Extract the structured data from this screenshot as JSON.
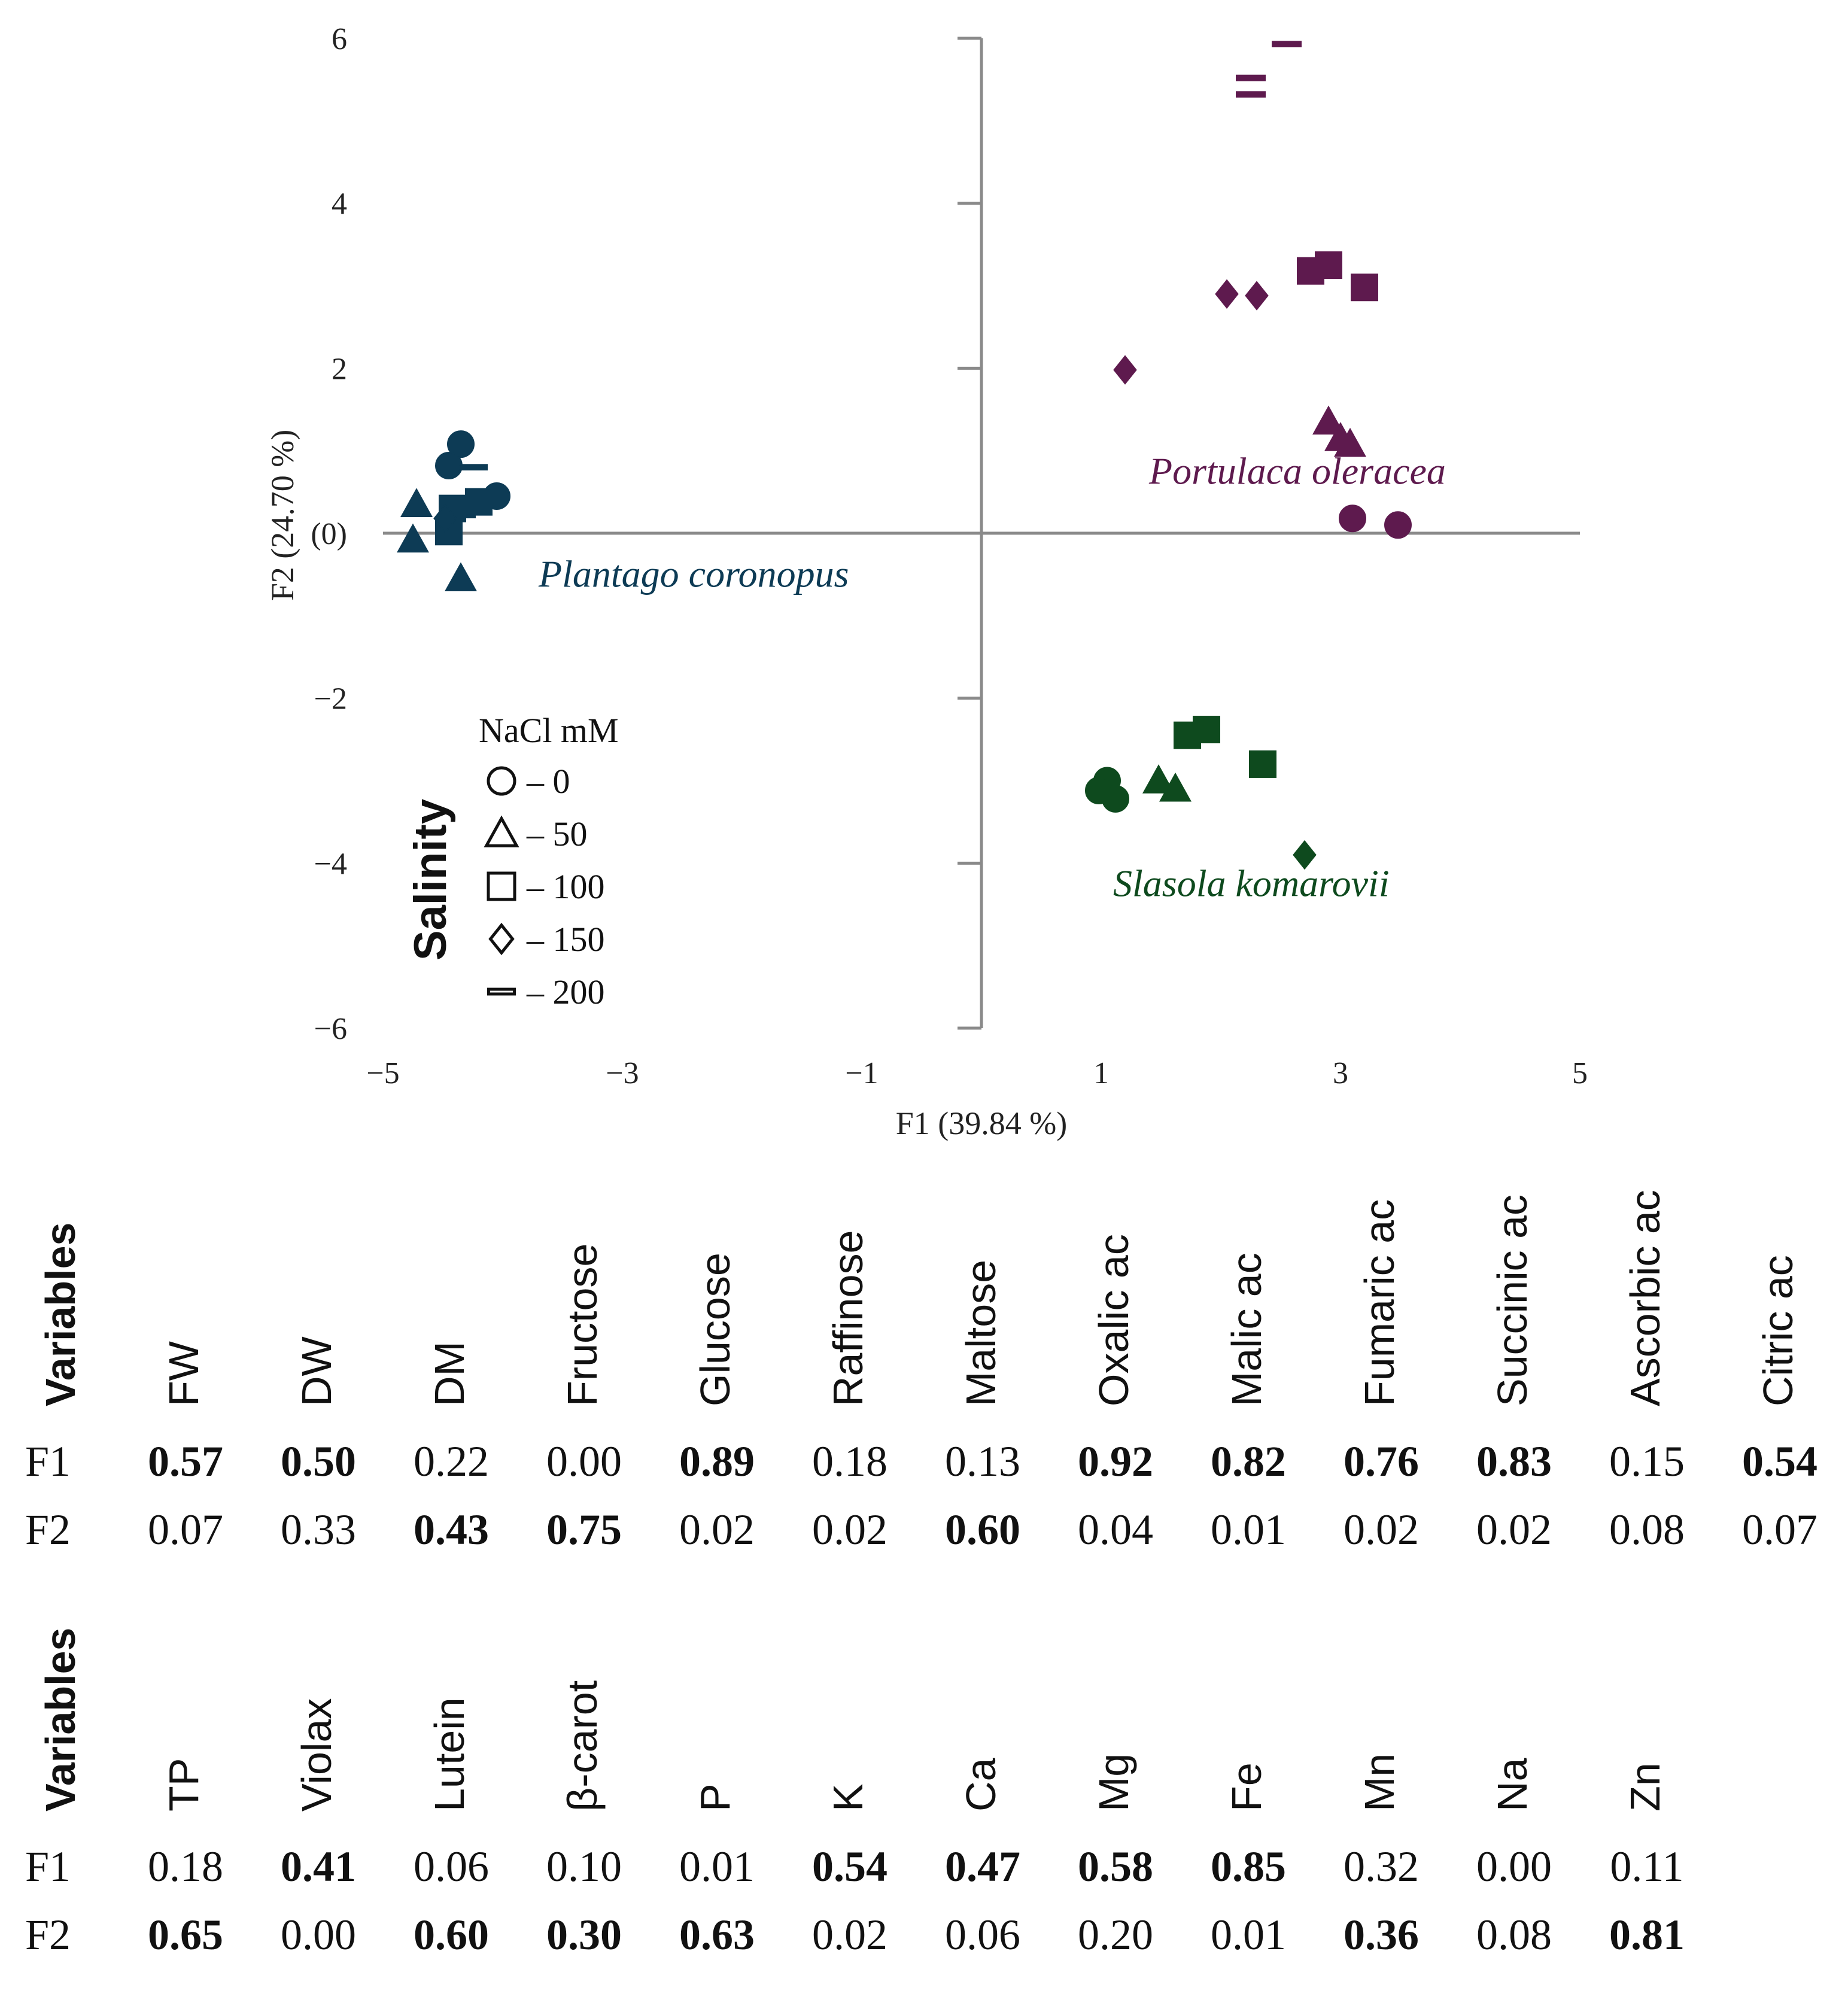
{
  "chart_data": {
    "type": "scatter",
    "title": "",
    "xlabel": "F1 (39.84 %)",
    "ylabel": "F2 (24.70 %)",
    "xlim": [
      -5,
      5
    ],
    "ylim": [
      -6,
      6
    ],
    "x_ticks": [
      -5,
      -3,
      -1,
      1,
      3,
      5
    ],
    "x_tick_labels": [
      "−5",
      "−3",
      "−1",
      "1",
      "3",
      "5"
    ],
    "y_ticks": [
      6,
      4,
      2,
      0,
      -2,
      -4,
      -6
    ],
    "y_tick_labels": [
      "6",
      "4",
      "2",
      "(0)",
      "−2",
      "−4",
      "−6"
    ],
    "legend": {
      "side_label": "Salinity",
      "title": "NaCl mM",
      "entries": [
        {
          "marker": "circle",
          "label": "– 0"
        },
        {
          "marker": "triangle",
          "label": "– 50"
        },
        {
          "marker": "square",
          "label": "– 100"
        },
        {
          "marker": "diamond",
          "label": "– 150"
        },
        {
          "marker": "dash",
          "label": "– 200"
        }
      ]
    },
    "series": [
      {
        "name": "Portulaca oleracea",
        "color": "#5e1a4e",
        "label_pos": {
          "x": 1.4,
          "y": 0.6
        },
        "points": [
          {
            "x": 2.55,
            "y": 5.93,
            "marker": "dash"
          },
          {
            "x": 2.25,
            "y": 5.52,
            "marker": "dash"
          },
          {
            "x": 2.25,
            "y": 5.32,
            "marker": "dash"
          },
          {
            "x": 2.75,
            "y": 3.18,
            "marker": "square"
          },
          {
            "x": 2.9,
            "y": 3.25,
            "marker": "square"
          },
          {
            "x": 3.2,
            "y": 2.98,
            "marker": "square"
          },
          {
            "x": 2.05,
            "y": 2.9,
            "marker": "diamond"
          },
          {
            "x": 2.3,
            "y": 2.88,
            "marker": "diamond"
          },
          {
            "x": 1.2,
            "y": 1.98,
            "marker": "diamond"
          },
          {
            "x": 2.9,
            "y": 1.35,
            "marker": "triangle"
          },
          {
            "x": 3.0,
            "y": 1.15,
            "marker": "triangle"
          },
          {
            "x": 3.08,
            "y": 1.08,
            "marker": "triangle"
          },
          {
            "x": 3.1,
            "y": 0.18,
            "marker": "circle"
          },
          {
            "x": 3.48,
            "y": 0.1,
            "marker": "circle"
          }
        ]
      },
      {
        "name": "Plantago coronopus",
        "color": "#0d3b55",
        "label_pos": {
          "x": -3.7,
          "y": -0.65
        },
        "points": [
          {
            "x": -4.35,
            "y": 1.08,
            "marker": "circle"
          },
          {
            "x": -4.45,
            "y": 0.82,
            "marker": "circle"
          },
          {
            "x": -4.05,
            "y": 0.45,
            "marker": "circle"
          },
          {
            "x": -4.25,
            "y": 0.8,
            "marker": "dash"
          },
          {
            "x": -4.35,
            "y": 0.22,
            "marker": "dash"
          },
          {
            "x": -4.2,
            "y": 0.38,
            "marker": "square"
          },
          {
            "x": -4.42,
            "y": 0.3,
            "marker": "square"
          },
          {
            "x": -4.45,
            "y": 0.02,
            "marker": "square"
          },
          {
            "x": -4.48,
            "y": 0.18,
            "marker": "diamond"
          },
          {
            "x": -4.72,
            "y": 0.35,
            "marker": "triangle"
          },
          {
            "x": -4.75,
            "y": -0.08,
            "marker": "triangle"
          },
          {
            "x": -4.35,
            "y": -0.55,
            "marker": "triangle"
          }
        ]
      },
      {
        "name": "Slasola komarovii",
        "color": "#0e4a1e",
        "label_pos": {
          "x": 1.1,
          "y": -4.4
        },
        "points": [
          {
            "x": 1.05,
            "y": -3.0,
            "marker": "circle"
          },
          {
            "x": 0.98,
            "y": -3.12,
            "marker": "circle"
          },
          {
            "x": 1.12,
            "y": -3.22,
            "marker": "circle"
          },
          {
            "x": 1.48,
            "y": -3.0,
            "marker": "triangle"
          },
          {
            "x": 1.62,
            "y": -3.1,
            "marker": "triangle"
          },
          {
            "x": 1.72,
            "y": -2.45,
            "marker": "square"
          },
          {
            "x": 1.88,
            "y": -2.38,
            "marker": "square"
          },
          {
            "x": 2.35,
            "y": -2.8,
            "marker": "square"
          },
          {
            "x": 1.75,
            "y": -2.45,
            "marker": "dash"
          },
          {
            "x": 2.7,
            "y": -3.9,
            "marker": "diamond"
          }
        ]
      }
    ]
  },
  "table1": {
    "header": "Variables",
    "row_labels": [
      "F1",
      "F2"
    ],
    "variables": [
      "FW",
      "DW",
      "DM",
      "Fructose",
      "Glucose",
      "Raffinose",
      "Maltose",
      "Oxalic ac",
      "Malic ac",
      "Fumaric ac",
      "Succinic ac",
      "Ascorbic ac",
      "Citric ac"
    ],
    "f1": [
      "0.57",
      "0.50",
      "0.22",
      "0.00",
      "0.89",
      "0.18",
      "0.13",
      "0.92",
      "0.82",
      "0.76",
      "0.83",
      "0.15",
      "0.54"
    ],
    "f2": [
      "0.07",
      "0.33",
      "0.43",
      "0.75",
      "0.02",
      "0.02",
      "0.60",
      "0.04",
      "0.01",
      "0.02",
      "0.02",
      "0.08",
      "0.07"
    ],
    "f1_bold": [
      true,
      true,
      false,
      false,
      true,
      false,
      false,
      true,
      true,
      true,
      true,
      false,
      true
    ],
    "f2_bold": [
      false,
      false,
      true,
      true,
      false,
      false,
      true,
      false,
      false,
      false,
      false,
      false,
      false
    ]
  },
  "table2": {
    "header": "Variables",
    "row_labels": [
      "F1",
      "F2"
    ],
    "variables": [
      "TP",
      "Violax",
      "Lutein",
      "β-carot",
      "P",
      "K",
      "Ca",
      "Mg",
      "Fe",
      "Mn",
      "Na",
      "Zn"
    ],
    "f1": [
      "0.18",
      "0.41",
      "0.06",
      "0.10",
      "0.01",
      "0.54",
      "0.47",
      "0.58",
      "0.85",
      "0.32",
      "0.00",
      "0.11"
    ],
    "f2": [
      "0.65",
      "0.00",
      "0.60",
      "0.30",
      "0.63",
      "0.02",
      "0.06",
      "0.20",
      "0.01",
      "0.36",
      "0.08",
      "0.81"
    ],
    "f1_bold": [
      false,
      true,
      false,
      false,
      false,
      true,
      true,
      true,
      true,
      false,
      false,
      false
    ],
    "f2_bold": [
      true,
      false,
      true,
      true,
      true,
      false,
      false,
      false,
      false,
      true,
      false,
      true
    ]
  }
}
